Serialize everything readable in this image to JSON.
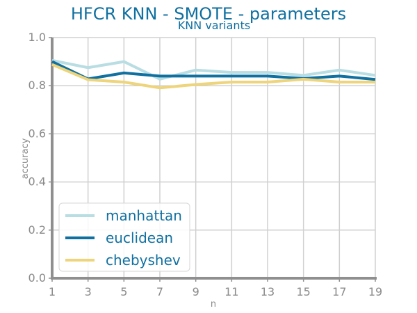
{
  "chart_data": {
    "type": "line",
    "title": "HFCR KNN - SMOTE - parameters",
    "subtitle": "KNN variants",
    "xlabel": "n",
    "ylabel": "accuracy",
    "x": [
      1,
      3,
      5,
      7,
      9,
      11,
      13,
      15,
      17,
      19
    ],
    "x_ticks": [
      "1",
      "3",
      "5",
      "7",
      "9",
      "11",
      "13",
      "15",
      "17",
      "19"
    ],
    "xlim": [
      1,
      19
    ],
    "ylim": [
      0.0,
      1.0
    ],
    "y_ticks": [
      "0.0",
      "0.2",
      "0.4",
      "0.6",
      "0.8",
      "1.0"
    ],
    "y_tick_values": [
      0.0,
      0.2,
      0.4,
      0.6,
      0.8,
      1.0
    ],
    "grid": true,
    "legend_position": "lower-left",
    "series": [
      {
        "name": "manhattan",
        "color": "#b8dde3",
        "values": [
          0.905,
          0.875,
          0.9,
          0.827,
          0.865,
          0.855,
          0.855,
          0.843,
          0.865,
          0.843
        ]
      },
      {
        "name": "euclidean",
        "color": "#1070a0",
        "values": [
          0.9,
          0.828,
          0.853,
          0.84,
          0.84,
          0.84,
          0.84,
          0.83,
          0.84,
          0.826
        ]
      },
      {
        "name": "chebyshev",
        "color": "#eed47a",
        "values": [
          0.888,
          0.825,
          0.815,
          0.791,
          0.805,
          0.815,
          0.815,
          0.827,
          0.815,
          0.815
        ]
      }
    ]
  }
}
